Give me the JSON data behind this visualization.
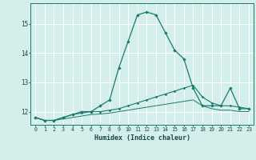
{
  "xlabel": "Humidex (Indice chaleur)",
  "background_color": "#d4eeec",
  "grid_color": "#ffffff",
  "line_color": "#1a7a6e",
  "x_values": [
    0,
    1,
    2,
    3,
    4,
    5,
    6,
    7,
    8,
    9,
    10,
    11,
    12,
    13,
    14,
    15,
    16,
    17,
    18,
    19,
    20,
    21,
    22,
    23
  ],
  "series1": [
    11.8,
    11.7,
    11.7,
    11.8,
    11.9,
    12.0,
    12.0,
    12.2,
    12.4,
    13.5,
    14.4,
    15.3,
    15.4,
    15.3,
    14.7,
    14.1,
    13.8,
    12.8,
    12.2,
    12.2,
    12.2,
    12.8,
    12.1,
    12.1
  ],
  "series2": [
    11.8,
    11.7,
    11.7,
    11.8,
    11.9,
    11.95,
    12.0,
    12.0,
    12.05,
    12.1,
    12.2,
    12.3,
    12.4,
    12.5,
    12.6,
    12.7,
    12.8,
    12.9,
    12.5,
    12.3,
    12.2,
    12.2,
    12.15,
    12.1
  ],
  "series3": [
    11.8,
    11.7,
    11.7,
    11.75,
    11.8,
    11.85,
    11.9,
    11.92,
    11.95,
    12.0,
    12.05,
    12.1,
    12.15,
    12.2,
    12.25,
    12.3,
    12.35,
    12.4,
    12.2,
    12.1,
    12.05,
    12.05,
    12.0,
    12.0
  ],
  "ylim": [
    11.55,
    15.7
  ],
  "yticks": [
    12,
    13,
    14,
    15
  ],
  "xlim": [
    -0.5,
    23.5
  ],
  "xtick_labels": [
    "0",
    "1",
    "2",
    "3",
    "4",
    "5",
    "6",
    "7",
    "8",
    "9",
    "10",
    "11",
    "12",
    "13",
    "14",
    "15",
    "16",
    "17",
    "18",
    "19",
    "20",
    "21",
    "22",
    "23"
  ]
}
